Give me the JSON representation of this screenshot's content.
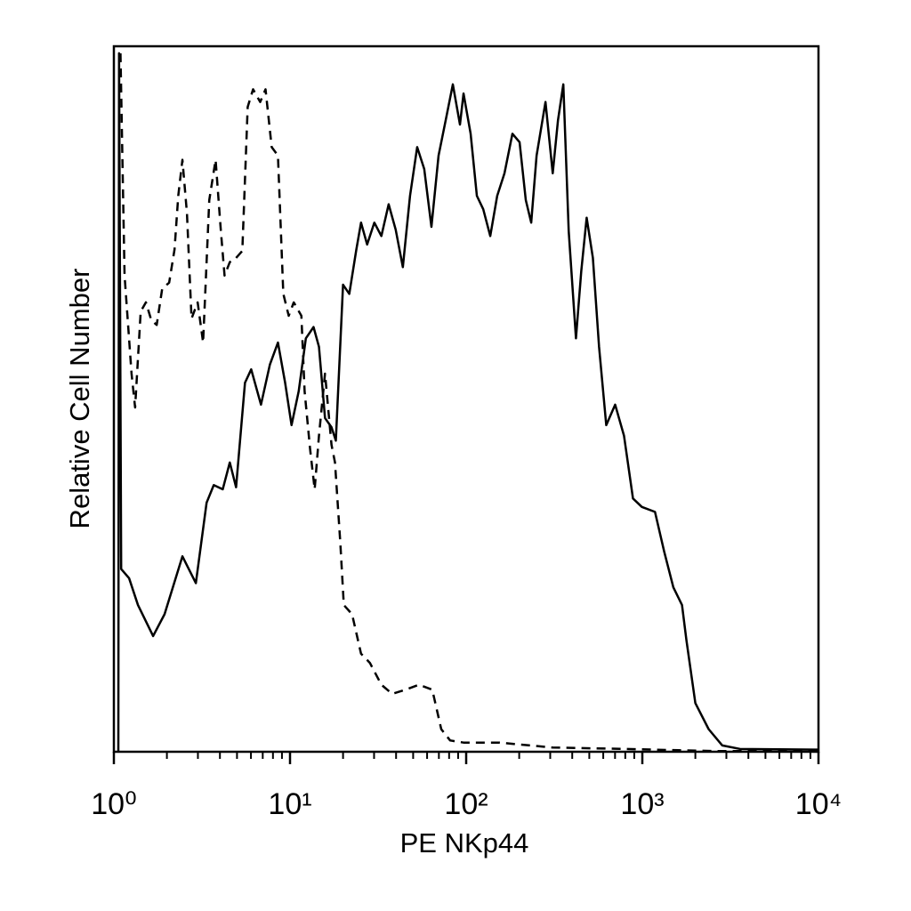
{
  "chart_data": {
    "type": "line",
    "x_label": "PE NKp44",
    "y_label": "Relative Cell Number",
    "xscale": "log",
    "xlim": [
      1,
      10000
    ],
    "ylim": [
      0,
      100
    ],
    "xticks": [
      {
        "value": 1,
        "label": "10⁰"
      },
      {
        "value": 10,
        "label": "10¹"
      },
      {
        "value": 100,
        "label": "10²"
      },
      {
        "value": 1000,
        "label": "10³"
      },
      {
        "value": 10000,
        "label": "10⁴"
      }
    ],
    "xminor_ticks": [
      2,
      3,
      4,
      5,
      6,
      7,
      8,
      9,
      20,
      30,
      40,
      50,
      60,
      70,
      80,
      90,
      200,
      300,
      400,
      500,
      600,
      700,
      800,
      900,
      2000,
      3000,
      4000,
      5000,
      6000,
      7000,
      8000,
      9000
    ],
    "grid": false,
    "series": [
      {
        "color": "#000000",
        "style": "solid",
        "x": [
          1.06,
          1.07,
          1.1,
          1.22,
          1.37,
          1.67,
          1.94,
          2.45,
          2.92,
          3.36,
          3.69,
          4.15,
          4.55,
          4.94,
          5.55,
          6.02,
          6.84,
          7.69,
          8.54,
          9.38,
          10.2,
          11.2,
          12.3,
          13.6,
          14.6,
          15.8,
          17.2,
          18.2,
          20.0,
          21.7,
          23.8,
          25.3,
          27.4,
          30.1,
          33.0,
          36.3,
          39.8,
          43.7,
          48.0,
          52.7,
          57.8,
          63.5,
          69.7,
          76.5,
          84.0,
          92.2,
          96.6,
          106,
          115,
          125,
          137,
          150,
          165,
          183,
          201,
          218,
          234,
          251,
          282,
          310,
          332,
          356,
          382,
          420,
          450,
          483,
          524,
          568,
          624,
          701,
          787,
          885,
          994,
          1180,
          1330,
          1500,
          1680,
          1780,
          2000,
          2380,
          2840,
          3580,
          10000
        ],
        "values": [
          0,
          99.0,
          25.9,
          24.6,
          20.8,
          16.4,
          19.5,
          27.7,
          23.9,
          35.3,
          37.8,
          37.2,
          41.0,
          37.5,
          52.3,
          54.2,
          49.2,
          54.9,
          58.0,
          52.3,
          46.3,
          51.1,
          58.6,
          60.2,
          57.4,
          47.3,
          46.0,
          44.1,
          66.2,
          64.9,
          71.2,
          75.0,
          71.9,
          75.0,
          73.1,
          77.6,
          74.0,
          68.7,
          78.8,
          85.7,
          82.6,
          74.4,
          84.5,
          89.5,
          94.6,
          88.9,
          93.3,
          87.6,
          78.8,
          76.9,
          73.1,
          78.8,
          82.0,
          87.6,
          86.4,
          78.2,
          75.0,
          84.5,
          92.1,
          82.0,
          89.5,
          94.6,
          73.8,
          58.6,
          68.1,
          75.7,
          70.0,
          57.4,
          46.3,
          49.2,
          44.8,
          35.9,
          34.7,
          34.0,
          28.4,
          23.3,
          20.8,
          15.8,
          6.9,
          3.2,
          0.9,
          0.4,
          0.3
        ]
      },
      {
        "color": "#000000",
        "style": "dashed",
        "x": [
          1.09,
          1.15,
          1.26,
          1.32,
          1.42,
          1.52,
          1.63,
          1.75,
          1.88,
          2.06,
          2.21,
          2.32,
          2.45,
          2.6,
          2.76,
          2.99,
          3.21,
          3.48,
          3.78,
          4.05,
          4.25,
          4.55,
          4.94,
          5.36,
          5.75,
          6.17,
          6.77,
          7.26,
          7.87,
          8.54,
          9.16,
          9.83,
          10.5,
          11.6,
          12.1,
          13.0,
          13.8,
          14.6,
          15.8,
          17.2,
          18.0,
          19.3,
          20.2,
          22.5,
          25.3,
          28.4,
          33.0,
          38.0,
          45.3,
          53.9,
          64.2,
          72.2,
          81.1,
          96.6,
          154,
          310,
          787,
          2530,
          10000
        ],
        "values": [
          99.0,
          67.5,
          53.6,
          48.8,
          62.4,
          63.7,
          61.2,
          60.5,
          65.6,
          66.5,
          71.2,
          78.8,
          83.9,
          76.3,
          61.4,
          63.7,
          58.0,
          78.2,
          83.9,
          73.8,
          67.5,
          69.4,
          70.0,
          71.0,
          91.4,
          93.9,
          92.1,
          93.9,
          85.7,
          84.5,
          64.9,
          61.8,
          63.7,
          61.8,
          51.1,
          42.9,
          37.2,
          44.8,
          53.6,
          43.5,
          41.0,
          29.6,
          20.8,
          19.5,
          13.9,
          12.6,
          9.5,
          8.2,
          8.8,
          9.5,
          8.8,
          3.2,
          1.6,
          1.3,
          1.3,
          0.6,
          0.4,
          0.1,
          0.1
        ]
      }
    ]
  }
}
